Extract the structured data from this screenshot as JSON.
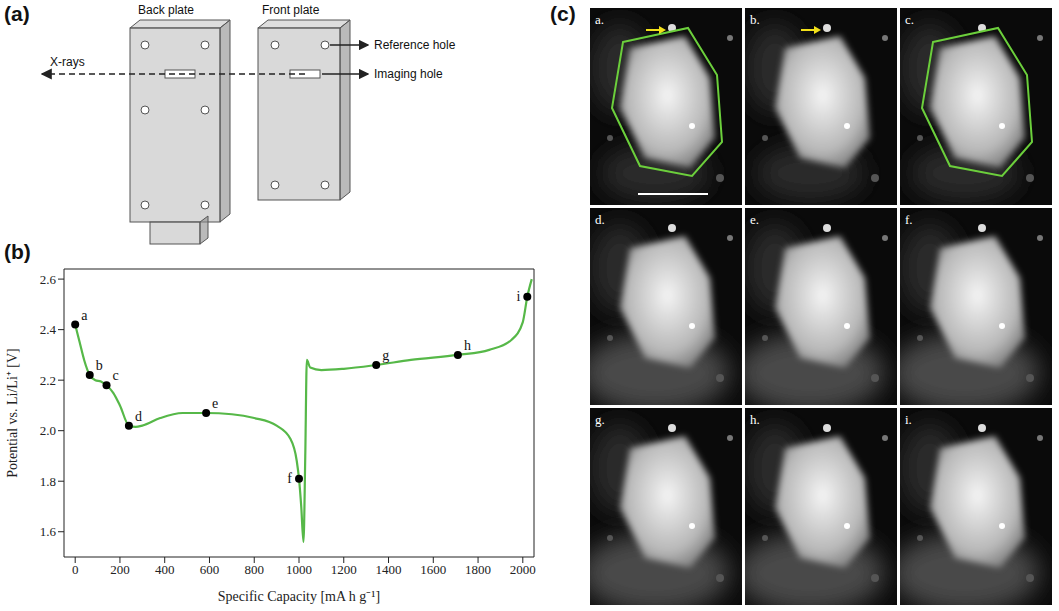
{
  "panel_letters": [
    "(a)",
    "(b)",
    "(c)"
  ],
  "panel_a": {
    "labels": {
      "back_plate": "Back plate",
      "front_plate": "Front plate",
      "x_rays": "X-rays",
      "reference_hole": "Reference hole",
      "imaging_hole": "Imaging hole"
    }
  },
  "chart_data": {
    "type": "line",
    "x_label": "Specific Capacity [mA h g⁻¹]",
    "y_label": "Potential vs. Li/Li⁺ [V]",
    "x": [
      0,
      20,
      40,
      65,
      90,
      115,
      140,
      170,
      200,
      240,
      270,
      300,
      380,
      480,
      585,
      700,
      800,
      900,
      960,
      990,
      1000,
      1010,
      1020,
      1028,
      1035,
      1050,
      1100,
      1200,
      1345,
      1500,
      1710,
      1850,
      1950,
      2000,
      2020,
      2040
    ],
    "values": [
      2.42,
      2.35,
      2.28,
      2.22,
      2.2,
      2.195,
      2.18,
      2.15,
      2.1,
      2.02,
      2.015,
      2.02,
      2.05,
      2.07,
      2.07,
      2.065,
      2.05,
      2.02,
      1.97,
      1.88,
      1.81,
      1.7,
      1.56,
      1.9,
      2.28,
      2.25,
      2.24,
      2.245,
      2.26,
      2.28,
      2.3,
      2.32,
      2.36,
      2.43,
      2.53,
      2.6
    ],
    "color": "#56b848",
    "xlim": [
      -50,
      2050
    ],
    "ylim": [
      1.5,
      2.64
    ],
    "xticks": [
      0,
      200,
      400,
      600,
      800,
      1000,
      1200,
      1400,
      1600,
      1800,
      2000
    ],
    "yticks": [
      1.6,
      1.8,
      {
        "value": 2,
        "label": "2.0"
      },
      2.2,
      2.4,
      2.6
    ],
    "grid": false,
    "points": {
      "x": [
        0,
        65,
        140,
        240,
        585,
        1000,
        1345,
        1710,
        2020
      ],
      "y": [
        2.42,
        2.22,
        2.18,
        2.02,
        2.07,
        1.81,
        2.26,
        2.3,
        2.53
      ],
      "labels": [
        "a",
        "b",
        "c",
        "d",
        "e",
        "f",
        "g",
        "h",
        "i"
      ],
      "color": "#000000"
    }
  },
  "panel_c": {
    "outline_color": "#6ccf3c",
    "arrow_color": "#f2e01a",
    "images": [
      {
        "label": "a.",
        "outline": true,
        "arrow": true,
        "scale_bar": true
      },
      {
        "label": "b.",
        "outline": false,
        "arrow": true,
        "scale_bar": false
      },
      {
        "label": "c.",
        "outline": true,
        "arrow": false,
        "scale_bar": false
      },
      {
        "label": "d.",
        "outline": false,
        "arrow": false,
        "scale_bar": false
      },
      {
        "label": "e.",
        "outline": false,
        "arrow": false,
        "scale_bar": false
      },
      {
        "label": "f.",
        "outline": false,
        "arrow": false,
        "scale_bar": false
      },
      {
        "label": "g.",
        "outline": false,
        "arrow": false,
        "scale_bar": false
      },
      {
        "label": "h.",
        "outline": false,
        "arrow": false,
        "scale_bar": false
      },
      {
        "label": "i.",
        "outline": false,
        "arrow": false,
        "scale_bar": false
      }
    ]
  }
}
